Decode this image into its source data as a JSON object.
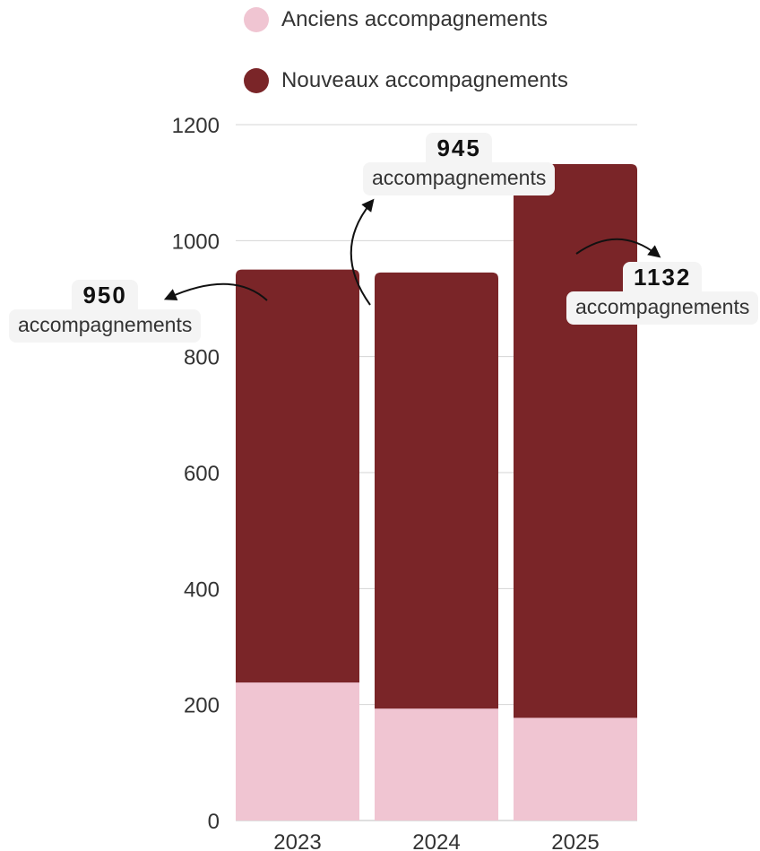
{
  "chart_data": {
    "type": "bar",
    "stacked": true,
    "categories": [
      "2023",
      "2024",
      "2025"
    ],
    "series": [
      {
        "name": "Anciens accompagnements",
        "color": "#f0c5d2",
        "values": [
          238,
          193,
          177
        ]
      },
      {
        "name": "Nouveaux accompagnements",
        "color": "#7a2528",
        "values": [
          712,
          752,
          955
        ]
      }
    ],
    "totals": [
      950,
      945,
      1132
    ],
    "ylim": [
      0,
      1200
    ],
    "yticks": [
      0,
      200,
      400,
      600,
      800,
      1000,
      1200
    ],
    "grid": true,
    "legend": "top-left",
    "annotations": [
      {
        "category": "2023",
        "value": "950",
        "text": "accompagnements"
      },
      {
        "category": "2024",
        "value": "945",
        "text": "accompagnements"
      },
      {
        "category": "2025",
        "value": "1132",
        "text": "accompagnements"
      }
    ]
  }
}
